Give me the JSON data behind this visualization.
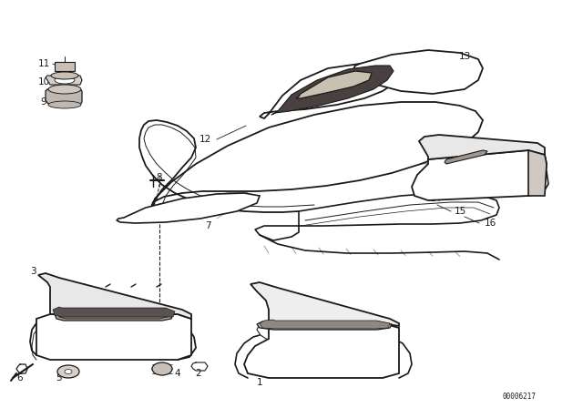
{
  "bg_color": "#ffffff",
  "line_color": "#1a1a1a",
  "catalog_number": "00006217",
  "figsize": [
    6.4,
    4.48
  ],
  "dpi": 100
}
